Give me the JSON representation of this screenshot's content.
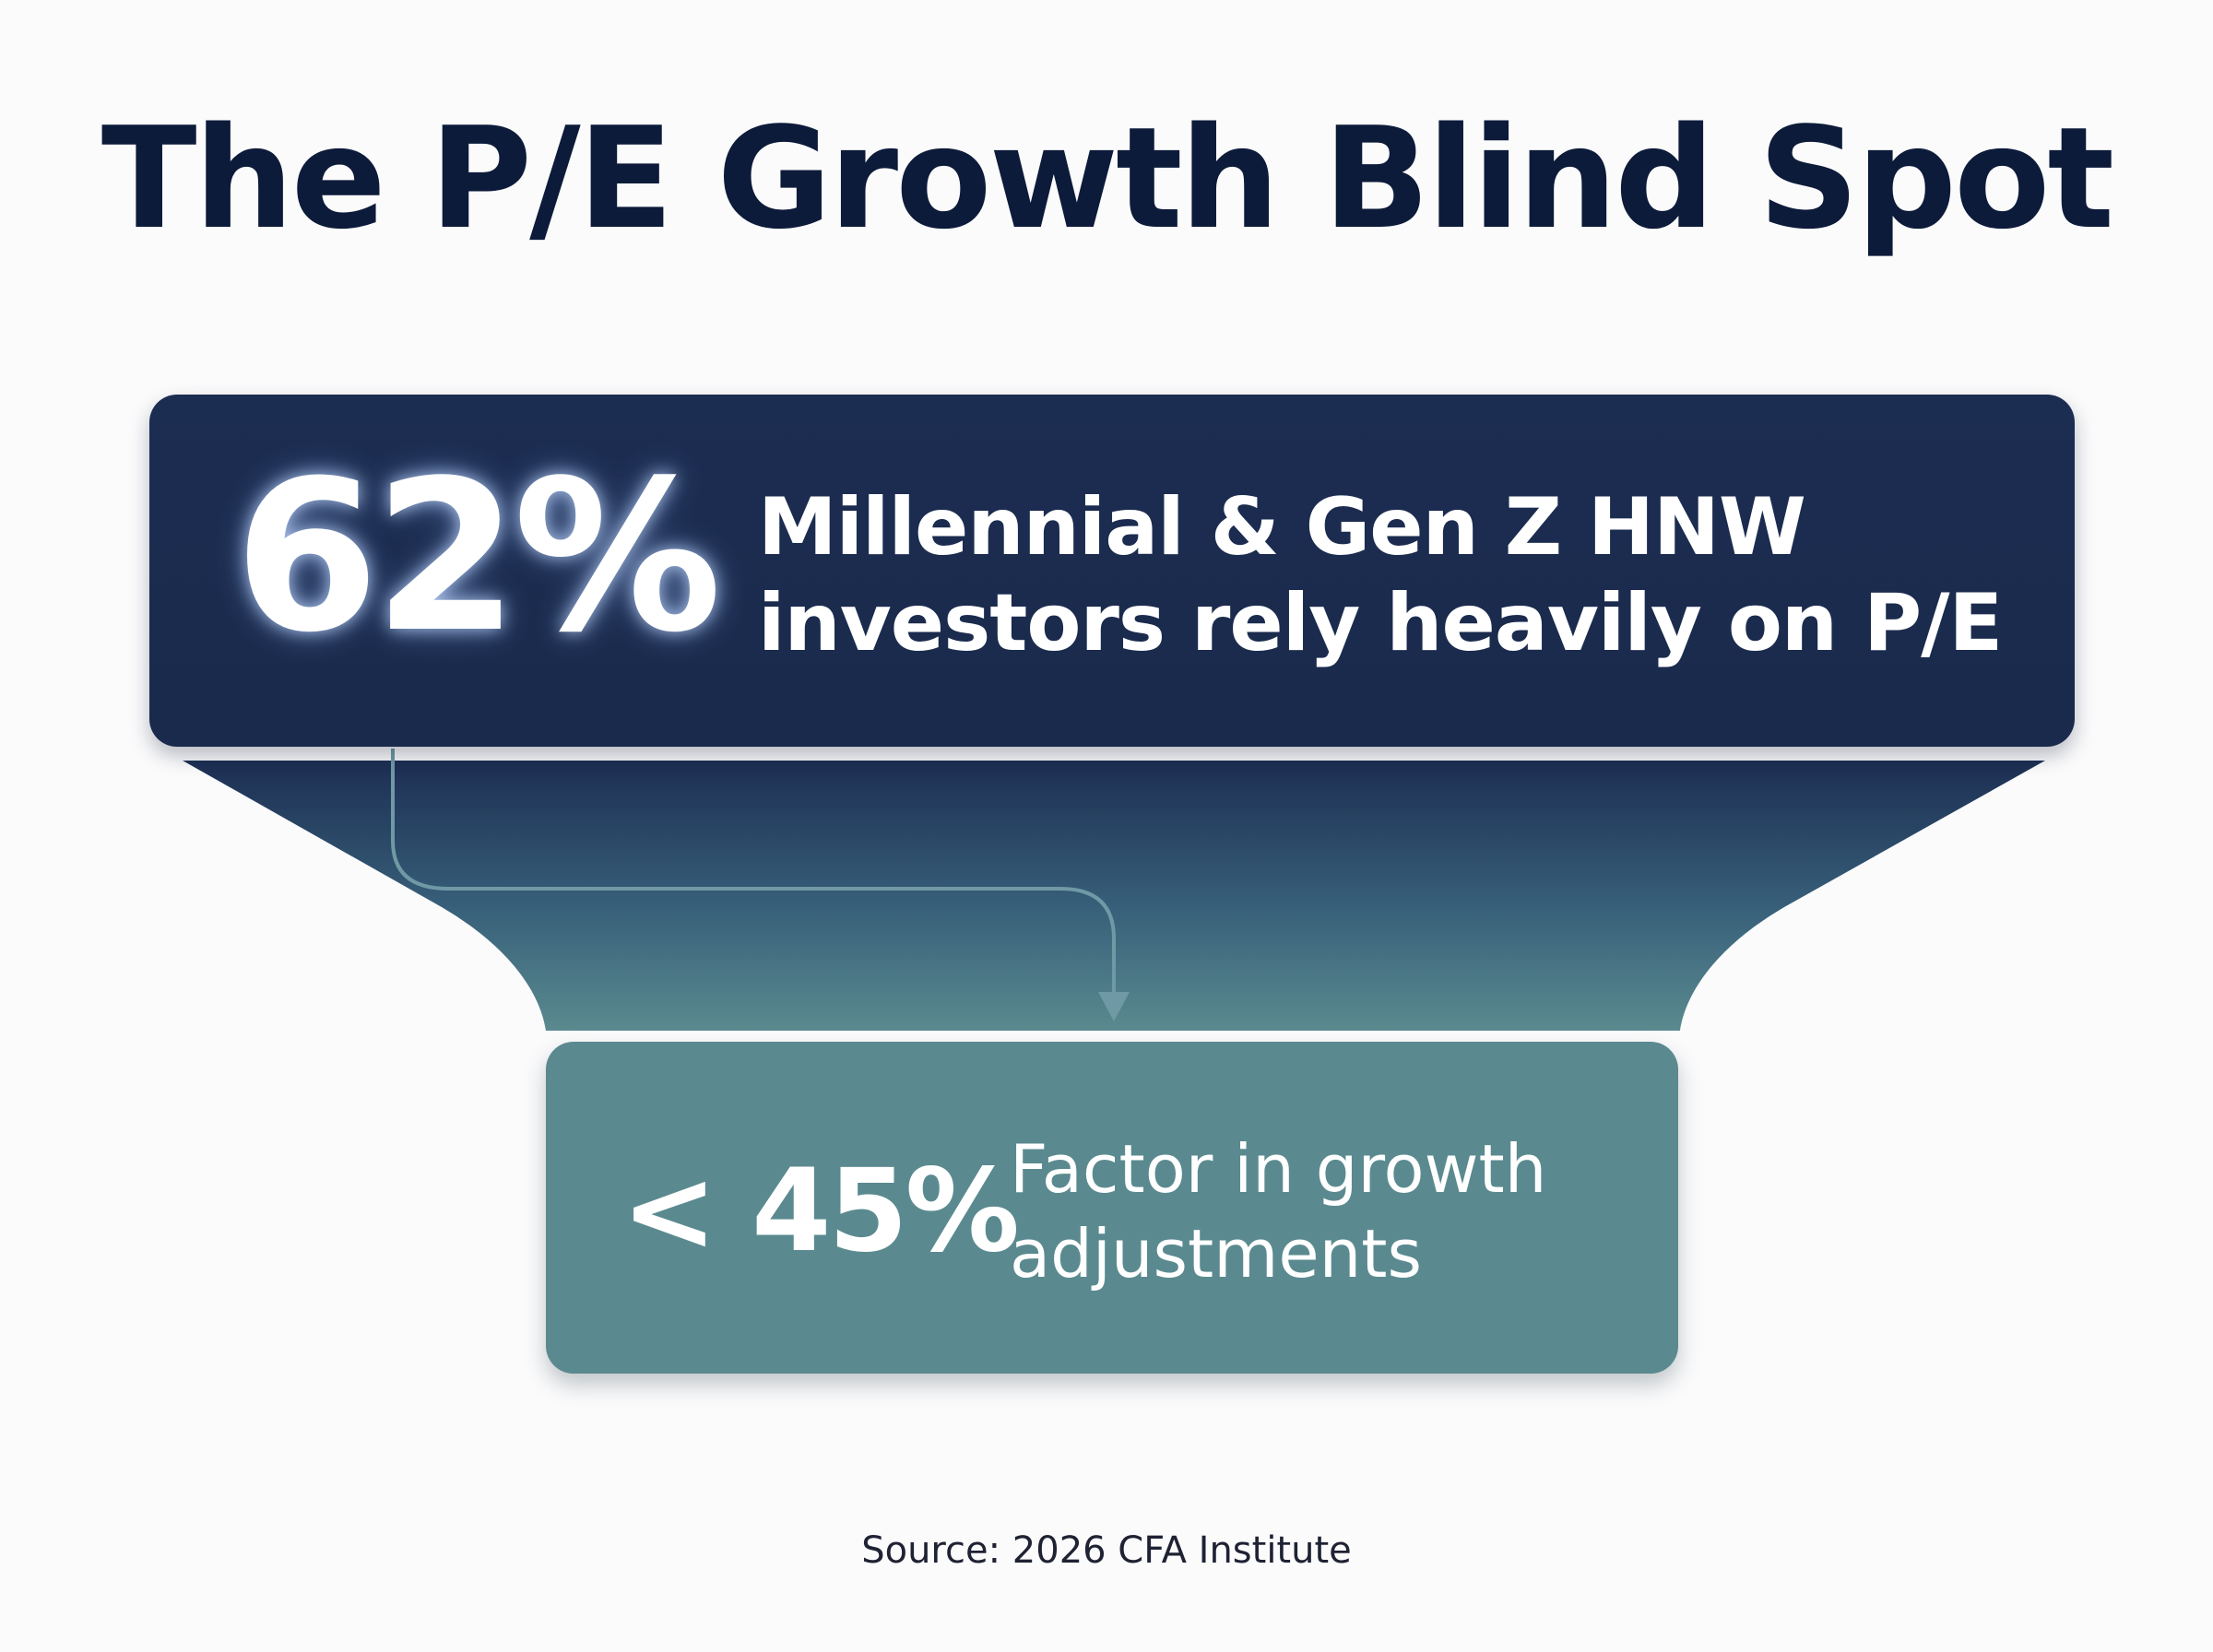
{
  "title": "The P/E Growth Blind Spot",
  "top_stat": {
    "value": "62%",
    "description_line1": "Millennial & Gen Z HNW",
    "description_line2": "investors rely heavily on P/E"
  },
  "bottom_stat": {
    "value": "< 45%",
    "description_line1": "Factor in growth",
    "description_line2": "adjustments"
  },
  "source": "Source: 2026 CFA Institute",
  "colors": {
    "title": "#0d1b3a",
    "top_card": "#1c2d52",
    "funnel_top": "#1c2e52",
    "funnel_bottom": "#5a8a8f",
    "bottom_card": "#5a8a8f",
    "connector": "#6f9aa5",
    "background": "#fbfbfc"
  }
}
